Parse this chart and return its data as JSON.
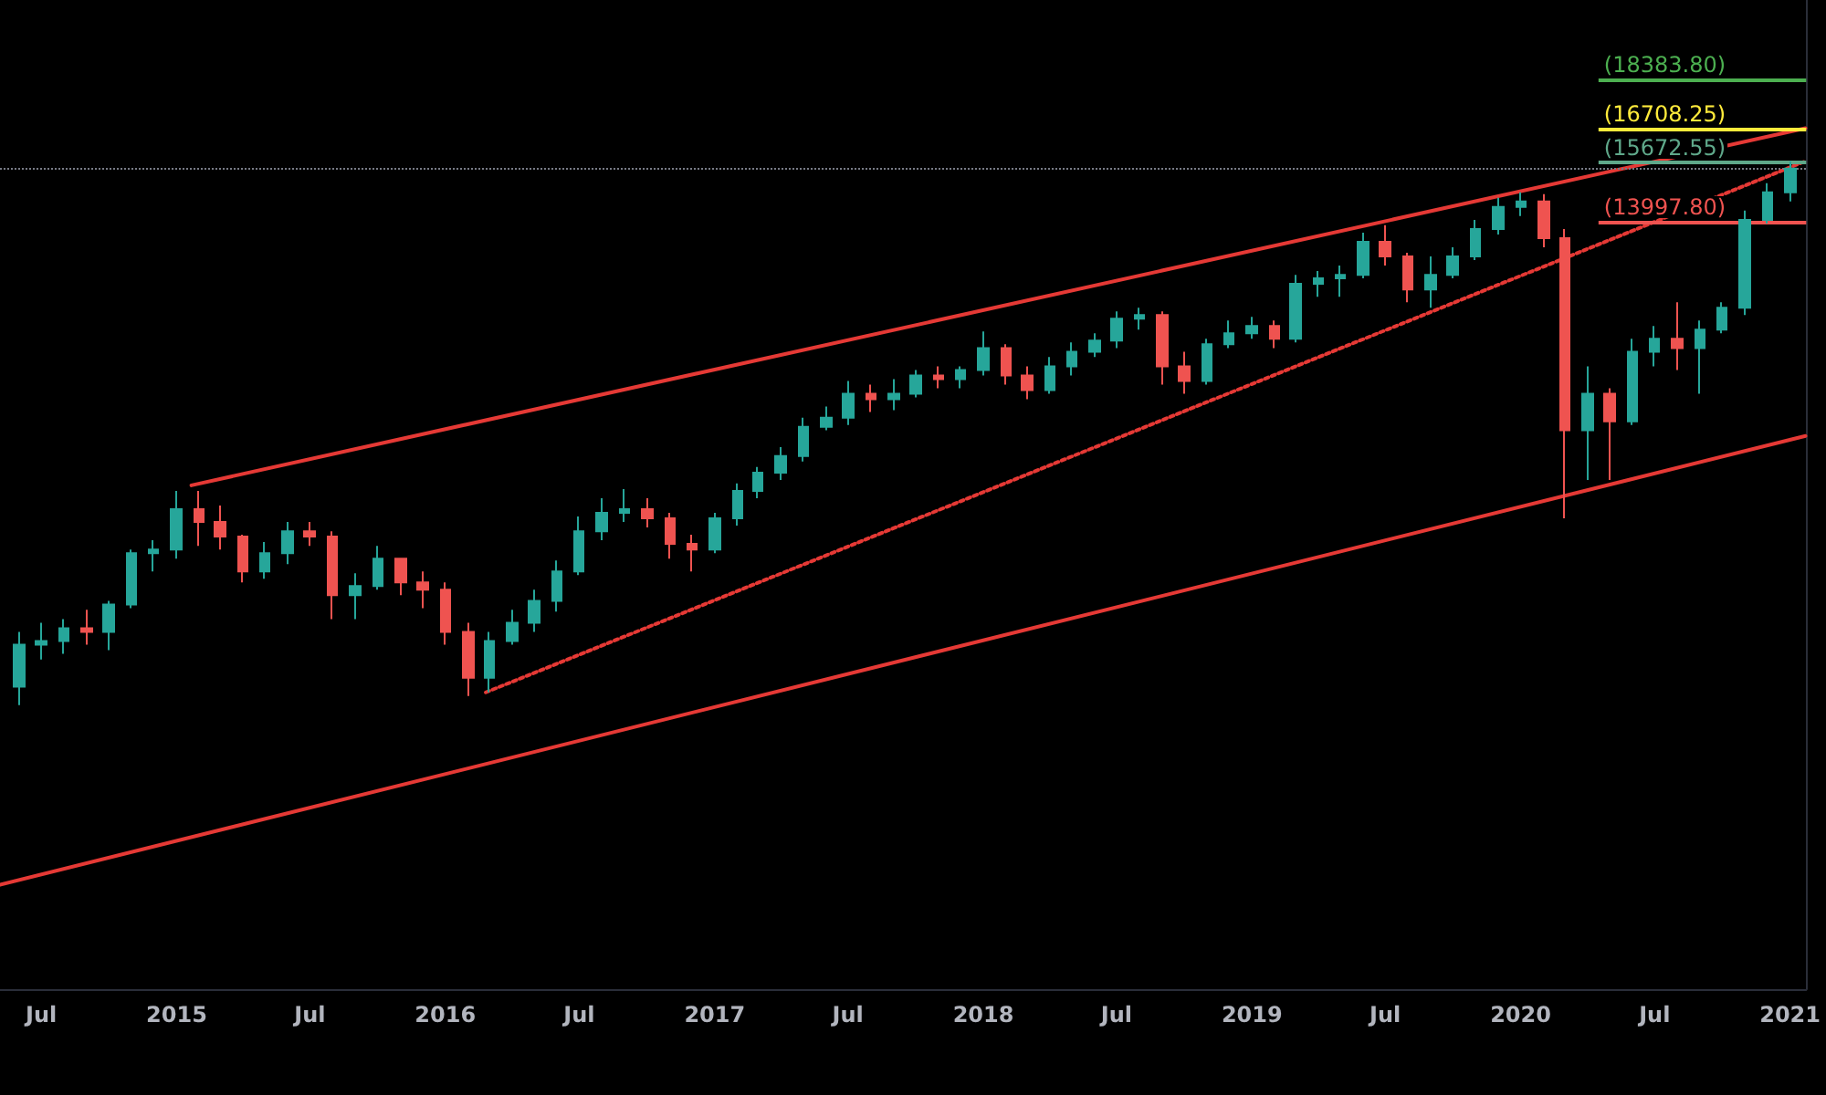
{
  "chart_data": {
    "type": "candlestick",
    "xlim": [
      "2014-05-06",
      "2021-01-23"
    ],
    "xticks": [
      {
        "value": "2014-07-01",
        "label": "Jul"
      },
      {
        "value": "2015-01-01",
        "label": "2015"
      },
      {
        "value": "2015-07-01",
        "label": "Jul"
      },
      {
        "value": "2016-01-01",
        "label": "2016"
      },
      {
        "value": "2016-07-01",
        "label": "Jul"
      },
      {
        "value": "2017-01-01",
        "label": "2017"
      },
      {
        "value": "2017-07-01",
        "label": "Jul"
      },
      {
        "value": "2018-01-01",
        "label": "2018"
      },
      {
        "value": "2018-07-01",
        "label": "Jul"
      },
      {
        "value": "2019-01-01",
        "label": "2019"
      },
      {
        "value": "2019-07-01",
        "label": "Jul"
      },
      {
        "value": "2020-01-01",
        "label": "2020"
      },
      {
        "value": "2020-07-01",
        "label": "Jul"
      },
      {
        "value": "2021-01-01",
        "label": "2021"
      }
    ],
    "ylim": [
      3230,
      21380
    ],
    "log": "y",
    "tick_labels": "x",
    "grid": false,
    "series": [
      {
        "x": [
          "2014-06",
          "2014-07",
          "2014-08",
          "2014-09",
          "2014-10",
          "2014-11",
          "2014-12",
          "2015-01",
          "2015-02",
          "2015-03",
          "2015-04",
          "2015-05",
          "2015-06",
          "2015-07",
          "2015-08",
          "2015-09",
          "2015-10",
          "2015-11",
          "2015-12",
          "2016-01",
          "2016-02",
          "2016-03",
          "2016-04",
          "2016-05",
          "2016-06",
          "2016-07",
          "2016-08",
          "2016-09",
          "2016-10",
          "2016-11",
          "2016-12",
          "2017-01",
          "2017-02",
          "2017-03",
          "2017-04",
          "2017-05",
          "2017-06",
          "2017-07",
          "2017-08",
          "2017-09",
          "2017-10",
          "2017-11",
          "2017-12",
          "2018-01",
          "2018-02",
          "2018-03",
          "2018-04",
          "2018-05",
          "2018-06",
          "2018-07",
          "2018-08",
          "2018-09",
          "2018-10",
          "2018-11",
          "2018-12",
          "2019-01",
          "2019-02",
          "2019-03",
          "2019-04",
          "2019-05",
          "2019-06",
          "2019-07",
          "2019-08",
          "2019-09",
          "2019-10",
          "2019-11",
          "2019-12",
          "2020-01",
          "2020-02",
          "2020-03",
          "2020-04",
          "2020-05",
          "2020-06",
          "2020-07",
          "2020-08",
          "2020-09",
          "2020-10",
          "2020-11",
          "2020-12",
          "2021-01"
        ],
        "ohlc": [
          [
            5756,
            6393,
            5558,
            6238
          ],
          [
            6238,
            6505,
            6065,
            6281
          ],
          [
            6281,
            6551,
            6130,
            6438
          ],
          [
            6438,
            6667,
            6238,
            6393
          ],
          [
            6393,
            6784,
            6173,
            6736
          ],
          [
            6736,
            7482,
            6690,
            7430
          ],
          [
            7430,
            7615,
            7174,
            7482
          ],
          [
            7482,
            8369,
            7353,
            8081
          ],
          [
            8081,
            8369,
            7535,
            7886
          ],
          [
            7886,
            8138,
            7482,
            7668
          ],
          [
            7668,
            7695,
            7026,
            7174
          ],
          [
            7174,
            7589,
            7075,
            7430
          ],
          [
            7430,
            7886,
            7276,
            7748
          ],
          [
            7748,
            7886,
            7535,
            7668
          ],
          [
            7668,
            7748,
            6551,
            6856
          ],
          [
            6856,
            7149,
            6551,
            6976
          ],
          [
            6976,
            7535,
            6928,
            7353
          ],
          [
            7353,
            7353,
            6856,
            7026
          ],
          [
            7026,
            7174,
            6690,
            6928
          ],
          [
            6928,
            7026,
            6238,
            6393
          ],
          [
            6393,
            6505,
            5655,
            5856
          ],
          [
            5856,
            6393,
            5695,
            6281
          ],
          [
            6281,
            6667,
            6238,
            6505
          ],
          [
            6505,
            6928,
            6393,
            6784
          ],
          [
            6784,
            7327,
            6644,
            7174
          ],
          [
            7174,
            7969,
            7125,
            7748
          ],
          [
            7748,
            8253,
            7615,
            8024
          ],
          [
            8024,
            8399,
            7886,
            8081
          ],
          [
            8081,
            8253,
            7803,
            7941
          ],
          [
            7941,
            8024,
            7353,
            7562
          ],
          [
            7562,
            7695,
            7174,
            7482
          ],
          [
            7482,
            8024,
            7430,
            7941
          ],
          [
            7941,
            8488,
            7831,
            8369
          ],
          [
            8369,
            8759,
            8253,
            8667
          ],
          [
            8667,
            9098,
            8545,
            8944
          ],
          [
            8944,
            9627,
            8851,
            9460
          ],
          [
            9460,
            9831,
            9395,
            9627
          ],
          [
            9627,
            10325,
            9493,
            10076
          ],
          [
            10076,
            10252,
            9729,
            9970
          ],
          [
            9970,
            10362,
            9763,
            10076
          ],
          [
            10076,
            10544,
            10005,
            10435
          ],
          [
            10435,
            10617,
            10181,
            10362
          ],
          [
            10362,
            10617,
            10181,
            10544
          ],
          [
            10544,
            11348,
            10435,
            10995
          ],
          [
            10995,
            11074,
            10252,
            10435
          ],
          [
            10435,
            10617,
            9970,
            10146
          ],
          [
            10146,
            10806,
            10076,
            10617
          ],
          [
            10617,
            11113,
            10435,
            10919
          ],
          [
            10919,
            11309,
            10806,
            11152
          ],
          [
            11152,
            11792,
            10995,
            11630
          ],
          [
            11630,
            11876,
            11387,
            11711
          ],
          [
            11711,
            11792,
            10252,
            10617
          ],
          [
            10617,
            10919,
            10076,
            10325
          ],
          [
            10325,
            11191,
            10252,
            11074
          ],
          [
            11074,
            11590,
            10995,
            11309
          ],
          [
            11309,
            11670,
            11191,
            11468
          ],
          [
            11468,
            11590,
            10995,
            11191
          ],
          [
            11191,
            12647,
            11113,
            12430
          ],
          [
            12430,
            12738,
            12128,
            12560
          ],
          [
            12560,
            12873,
            12128,
            12647
          ],
          [
            12647,
            13709,
            12560,
            13471
          ],
          [
            13471,
            13902,
            12873,
            13098
          ],
          [
            13098,
            13191,
            12002,
            12299
          ],
          [
            12299,
            13098,
            11876,
            12647
          ],
          [
            12647,
            13331,
            12560,
            13098
          ],
          [
            13098,
            14047,
            13008,
            13805
          ],
          [
            13805,
            14651,
            13661,
            14398
          ],
          [
            14398,
            14807,
            14148,
            14548
          ],
          [
            14548,
            14755,
            13331,
            13564
          ],
          [
            13564,
            13805,
            7941,
            9395
          ],
          [
            9395,
            10617,
            8545,
            10076
          ],
          [
            10076,
            10181,
            8545,
            9559
          ],
          [
            9559,
            11191,
            9493,
            10919
          ],
          [
            10919,
            11468,
            10617,
            11191
          ],
          [
            11191,
            12002,
            10544,
            10995
          ],
          [
            10995,
            11590,
            10076,
            11387
          ],
          [
            11387,
            12002,
            11309,
            11876
          ],
          [
            11876,
            14298,
            11711,
            14047
          ],
          [
            14047,
            15066,
            13950,
            14807
          ],
          [
            14807,
            15713,
            14548,
            15495
          ]
        ]
      },
      {
        "type": "line",
        "color": "#e53935",
        "line_style": "solid",
        "x": [
          "2015-01-21",
          "2021-01-22"
        ],
        "values": [
          8458,
          16734
        ]
      },
      {
        "type": "line",
        "color": "#e53935",
        "line_style": "solid",
        "x": [
          "2014-05-06",
          "2021-01-22"
        ],
        "values": [
          3943,
          9296
        ]
      },
      {
        "type": "line",
        "color": "#e53935",
        "line_style": "dotted",
        "x": [
          "2016-02-25",
          "2021-01-22"
        ],
        "values": [
          5695,
          15713
        ]
      }
    ],
    "ref_lines": [
      {
        "axis": "y",
        "value": 18383.8,
        "label": "(18383.80)",
        "color": "#4caf50",
        "line_style": "solid"
      },
      {
        "axis": "y",
        "value": 16708.25,
        "label": "(16708.25)",
        "color": "#ffeb3b",
        "line_style": "solid"
      },
      {
        "axis": "y",
        "value": 15672.55,
        "label": "(15672.55)",
        "color": "#5fa88a",
        "line_style": "solid"
      },
      {
        "axis": "y",
        "value": 13997.8,
        "label": "(13997.80)",
        "color": "#ef5350",
        "line_style": "solid"
      },
      {
        "axis": "y",
        "value": 15495,
        "label": null,
        "color": "#787b86",
        "line_style": "dotted"
      }
    ]
  }
}
